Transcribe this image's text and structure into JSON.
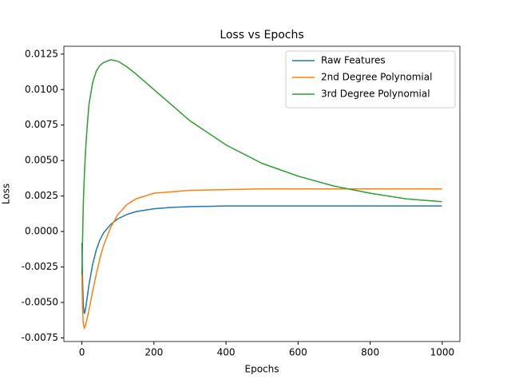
{
  "chart_data": {
    "type": "line",
    "title": "Loss vs Epochs",
    "x_label": "Epochs",
    "y_label": "Loss",
    "x": [
      0,
      2,
      4,
      7,
      10,
      15,
      20,
      30,
      40,
      50,
      60,
      80,
      100,
      125,
      150,
      200,
      250,
      300,
      400,
      500,
      600,
      700,
      800,
      900,
      999
    ],
    "series": [
      {
        "name": "Raw Features",
        "color": "#1f77b4",
        "values": [
          -0.0008,
          -0.0035,
          -0.0052,
          -0.0058,
          -0.0055,
          -0.0046,
          -0.0037,
          -0.0023,
          -0.0013,
          -0.0006,
          -0.0001,
          0.0005,
          0.0009,
          0.0012,
          0.0014,
          0.0016,
          0.0017,
          0.00175,
          0.0018,
          0.0018,
          0.0018,
          0.0018,
          0.0018,
          0.0018,
          0.0018
        ]
      },
      {
        "name": "2nd Degree Polynomial",
        "color": "#ff7f0e",
        "values": [
          -0.003,
          -0.0055,
          -0.0065,
          -0.0068,
          -0.0066,
          -0.0061,
          -0.0055,
          -0.0042,
          -0.003,
          -0.0019,
          -0.001,
          0.0003,
          0.0012,
          0.0019,
          0.0023,
          0.0027,
          0.0028,
          0.0029,
          0.00295,
          0.003,
          0.003,
          0.003,
          0.003,
          0.003,
          0.003
        ]
      },
      {
        "name": "3rd Degree Polynomial",
        "color": "#2ca02c",
        "values": [
          -0.003,
          -0.0005,
          0.002,
          0.004,
          0.0056,
          0.0075,
          0.009,
          0.0105,
          0.0113,
          0.0117,
          0.0119,
          0.0121,
          0.012,
          0.0116,
          0.0111,
          0.01,
          0.0089,
          0.0078,
          0.0061,
          0.0048,
          0.0039,
          0.0032,
          0.0027,
          0.0023,
          0.0021
        ]
      }
    ],
    "xlim": [
      -49.95,
      1048.95
    ],
    "xticks": [
      0,
      200,
      400,
      600,
      800,
      1000
    ],
    "ylim": [
      -0.00775,
      0.01305
    ],
    "yticks": [
      -0.0075,
      {
        "value": -0.005,
        "label": "-0.0050"
      },
      -0.0025,
      {
        "value": 0,
        "label": "0.0000"
      },
      0.0025,
      {
        "value": 0.005,
        "label": "0.0050"
      },
      0.0075,
      {
        "value": 0.01,
        "label": "0.0100"
      },
      0.0125
    ],
    "legend": "upper right"
  }
}
